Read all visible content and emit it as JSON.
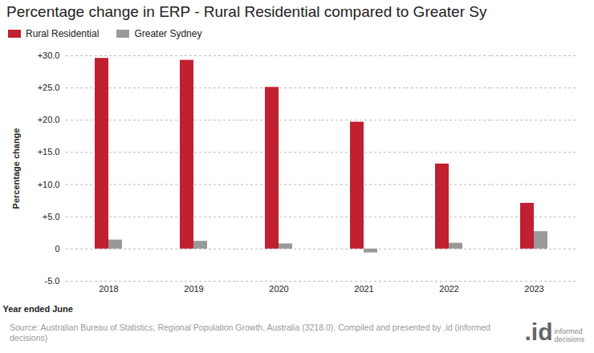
{
  "chart_data": {
    "type": "bar",
    "title": "Percentage change in ERP - Rural Residential compared to Greater Sy",
    "x_label": "Year ended June",
    "y_label": "Percentage change",
    "categories": [
      "2018",
      "2019",
      "2020",
      "2021",
      "2022",
      "2023"
    ],
    "series": [
      {
        "name": "Rural Residential",
        "color": "#c0202f",
        "values": [
          29.6,
          29.3,
          25.1,
          19.7,
          13.2,
          7.1
        ]
      },
      {
        "name": "Greater Sydney",
        "color": "#999999",
        "values": [
          1.4,
          1.2,
          0.8,
          -0.6,
          0.9,
          2.7
        ]
      }
    ],
    "ylim": [
      -5,
      30
    ],
    "yticks": [
      {
        "value": -5,
        "label": "-5.0"
      },
      0,
      {
        "value": 5,
        "label": "+5.0"
      },
      {
        "value": 10,
        "label": "+10.0"
      },
      {
        "value": 15,
        "label": "+15.0"
      },
      {
        "value": 20,
        "label": "+20.0"
      },
      {
        "value": 25,
        "label": "+25.0"
      },
      {
        "value": 30,
        "label": "+30.0"
      }
    ],
    "grid": true,
    "legend": "top-left",
    "source": "Source: Australian Bureau of Statistics, Regional Population Growth, Australia (3218.0). Compiled and presented by .id (informed decisions)",
    "logo": {
      "mark": ".id",
      "text": [
        "informed",
        "decisions"
      ]
    }
  }
}
